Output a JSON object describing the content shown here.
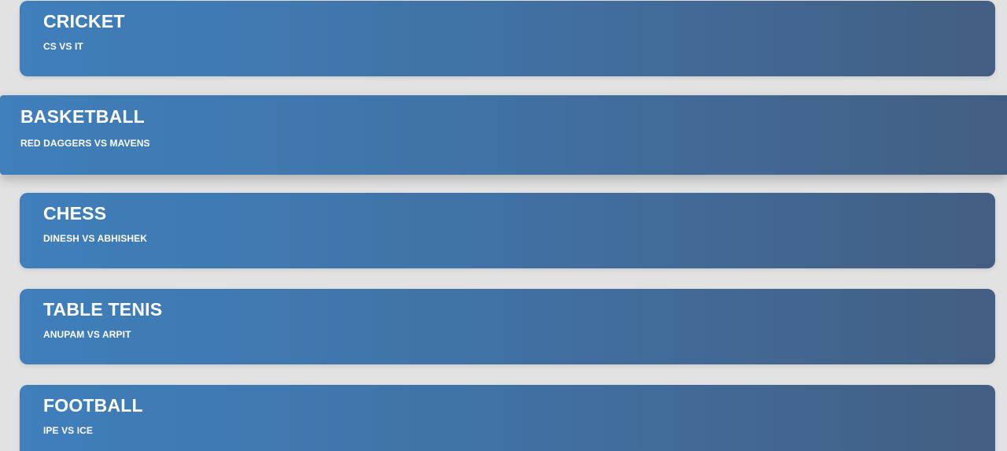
{
  "events": [
    {
      "title": "CRICKET",
      "matchup": "CS VS IT"
    },
    {
      "title": "BASKETBALL",
      "matchup": "RED DAGGERS VS MAVENS"
    },
    {
      "title": "CHESS",
      "matchup": "DINESH VS ABHISHEK"
    },
    {
      "title": "TABLE TENIS",
      "matchup": "ANUPAM VS ARPIT"
    },
    {
      "title": "FOOTBALL",
      "matchup": "IPE VS ICE"
    }
  ]
}
